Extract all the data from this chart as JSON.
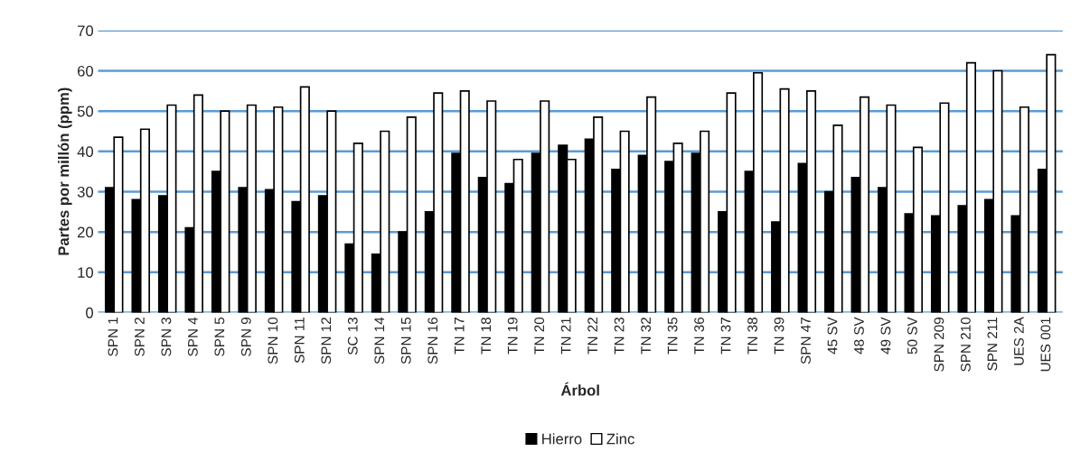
{
  "chart_data": {
    "type": "bar",
    "xlabel": "Árbol",
    "ylabel": "Partes por millón (ppm)",
    "categories": [
      "SPN 1",
      "SPN 2",
      "SPN 3",
      "SPN 4",
      "SPN 5",
      "SPN 9",
      "SPN 10",
      "SPN 11",
      "SPN 12",
      "SC 13",
      "SPN 14",
      "SPN 15",
      "SPN 16",
      "TN 17",
      "TN 18",
      "TN 19",
      "TN 20",
      "TN 21",
      "TN 22",
      "TN 23",
      "TN 32",
      "TN 35",
      "TN 36",
      "TN 37",
      "TN 38",
      "TN 39",
      "SPN 47",
      "45 SV",
      "48 SV",
      "49 SV",
      "50 SV",
      "SPN 209",
      "SPN 210",
      "SPN 211",
      "UES 2A",
      "UES 001"
    ],
    "series": [
      {
        "name": "Hierro",
        "color": "#000000",
        "values": [
          31,
          28,
          29,
          21,
          35,
          31,
          30.5,
          27.5,
          29,
          17,
          14.5,
          20,
          25,
          39.5,
          33.5,
          32,
          39.5,
          41.5,
          43,
          35.5,
          39,
          37.5,
          39.5,
          25,
          35,
          22.5,
          37,
          30,
          33.5,
          31,
          24.5,
          24,
          26.5,
          28,
          24,
          35.5
        ]
      },
      {
        "name": "Zinc",
        "color": "#ffffff",
        "values": [
          43.5,
          45.5,
          51.5,
          54,
          50,
          51.5,
          51,
          56,
          50,
          42,
          45,
          48.5,
          54.5,
          55,
          52.5,
          38,
          52.5,
          38,
          48.5,
          45,
          53.5,
          42,
          45,
          54.5,
          59.5,
          55.5,
          55,
          46.5,
          53.5,
          51.5,
          41,
          52,
          62,
          60,
          51,
          64
        ]
      }
    ],
    "ylim": [
      0,
      70
    ],
    "yticks": [
      0,
      10,
      20,
      30,
      40,
      50,
      60,
      70
    ],
    "grid": "y",
    "legend": "bottom"
  }
}
